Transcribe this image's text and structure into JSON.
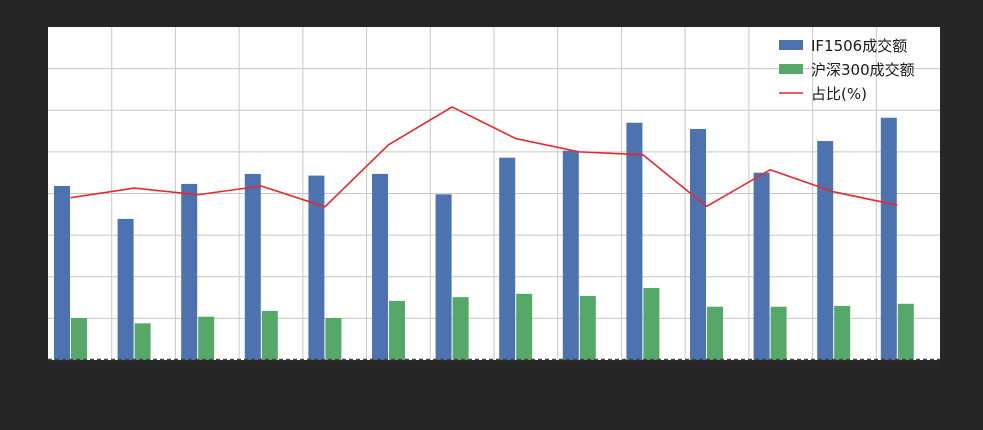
{
  "chart_data": {
    "type": "bar",
    "categories": [
      "",
      "",
      "",
      "",
      "",
      "",
      "",
      "",
      "",
      "",
      "",
      "",
      "",
      ""
    ],
    "ylim": [
      0,
      8
    ],
    "y2lim": [
      0,
      8
    ],
    "grid": true,
    "legend_position": "top-right",
    "series": [
      {
        "name": "IF1506成交额",
        "kind": "bar",
        "color": "#4C72B0",
        "values": [
          4.18,
          3.39,
          4.23,
          4.47,
          4.43,
          4.47,
          3.98,
          4.86,
          5.03,
          5.7,
          5.55,
          4.5,
          5.26,
          5.82
        ]
      },
      {
        "name": "沪深300成交额",
        "kind": "bar",
        "color": "#55A868",
        "values": [
          1.01,
          0.88,
          1.04,
          1.18,
          1.01,
          1.42,
          1.51,
          1.59,
          1.54,
          1.73,
          1.28,
          1.28,
          1.3,
          1.35
        ]
      },
      {
        "name": "占比(%)",
        "kind": "line",
        "color": "#E8282B",
        "values": [
          3.9,
          4.13,
          3.97,
          4.18,
          3.68,
          5.17,
          6.08,
          5.32,
          5.0,
          4.93,
          3.69,
          4.57,
          4.04,
          3.72
        ]
      }
    ]
  }
}
